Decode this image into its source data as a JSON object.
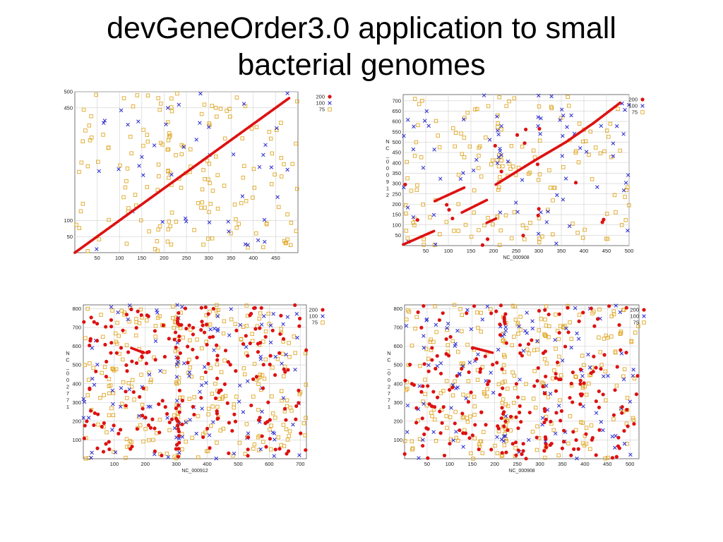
{
  "slide": {
    "title_line1": "devGeneOrder3.0 application to small",
    "title_line2": "bacterial genomes"
  },
  "colors": {
    "s200": "#dd1111",
    "s100": "#2a2ad0",
    "s75": "#e0a828",
    "grid": "#cfcfcf",
    "axis": "#555555"
  },
  "chart_data": [
    {
      "type": "scatter",
      "xlim": [
        0,
        500
      ],
      "ylim": [
        0,
        500
      ],
      "xticks": [
        50,
        100,
        150,
        200,
        250,
        300,
        350,
        400,
        450
      ],
      "yticks": [
        50,
        100,
        450,
        500
      ],
      "xlabel": "",
      "ylabel": [],
      "legend": {
        "placement": "top-right",
        "entries": [
          "200",
          "100",
          "75"
        ]
      },
      "grid": true,
      "diagonal_runs": [
        [
          0,
          0,
          480,
          480
        ]
      ],
      "seed": 11,
      "n100": 45,
      "n75": 170,
      "n200": 0
    },
    {
      "type": "scatter",
      "xlim": [
        0,
        500
      ],
      "ylim": [
        0,
        730
      ],
      "xticks": [
        50,
        100,
        150,
        200,
        250,
        300,
        350,
        400,
        450,
        500
      ],
      "yticks": [
        50,
        100,
        150,
        200,
        250,
        300,
        350,
        400,
        450,
        500,
        550,
        600,
        650,
        700
      ],
      "xlabel": "NC_000908",
      "ylabel": [
        "N",
        "C",
        "_",
        "0",
        "0",
        "0",
        "9",
        "1",
        "2"
      ],
      "legend": {
        "placement": "top-right",
        "entries": [
          "200",
          "100",
          "75"
        ]
      },
      "grid": true,
      "diagonal_runs": [
        [
          0,
          5,
          68,
          70
        ],
        [
          70,
          215,
          135,
          280
        ],
        [
          130,
          160,
          185,
          220
        ],
        [
          185,
          110,
          205,
          130
        ],
        [
          205,
          295,
          290,
          410
        ],
        [
          290,
          410,
          360,
          500
        ],
        [
          360,
          500,
          420,
          590
        ],
        [
          420,
          590,
          480,
          690
        ]
      ],
      "seed": 22,
      "n100": 75,
      "n75": 160,
      "n200": 20
    },
    {
      "type": "scatter",
      "xlim": [
        0,
        720
      ],
      "ylim": [
        0,
        820
      ],
      "xticks": [
        100,
        200,
        300,
        400,
        500,
        600,
        700
      ],
      "yticks": [
        100,
        200,
        300,
        400,
        500,
        600,
        700,
        800
      ],
      "xlabel": "NC_000912",
      "ylabel": [
        "N",
        "C",
        "_",
        "0",
        "0",
        "2",
        "7",
        "7",
        "1"
      ],
      "legend": {
        "placement": "top-right",
        "entries": [
          "200",
          "100",
          "75"
        ]
      },
      "grid": true,
      "diagonal_runs": [
        [
          155,
          590,
          195,
          565
        ]
      ],
      "seed": 33,
      "n100": 110,
      "n75": 270,
      "n200": 230
    },
    {
      "type": "scatter",
      "xlim": [
        0,
        520
      ],
      "ylim": [
        0,
        820
      ],
      "xticks": [
        50,
        100,
        150,
        200,
        250,
        300,
        350,
        400,
        450,
        500
      ],
      "yticks": [
        100,
        200,
        300,
        400,
        500,
        600,
        700,
        800
      ],
      "xlabel": "NC_000908",
      "ylabel": [
        "N",
        "C",
        "_",
        "0",
        "0",
        "2",
        "7",
        "7",
        "1"
      ],
      "legend": {
        "placement": "top-right",
        "entries": [
          "200",
          "100",
          "75"
        ]
      },
      "grid": true,
      "diagonal_runs": [
        [
          155,
          590,
          195,
          565
        ]
      ],
      "seed": 44,
      "n100": 110,
      "n75": 270,
      "n200": 220
    }
  ]
}
